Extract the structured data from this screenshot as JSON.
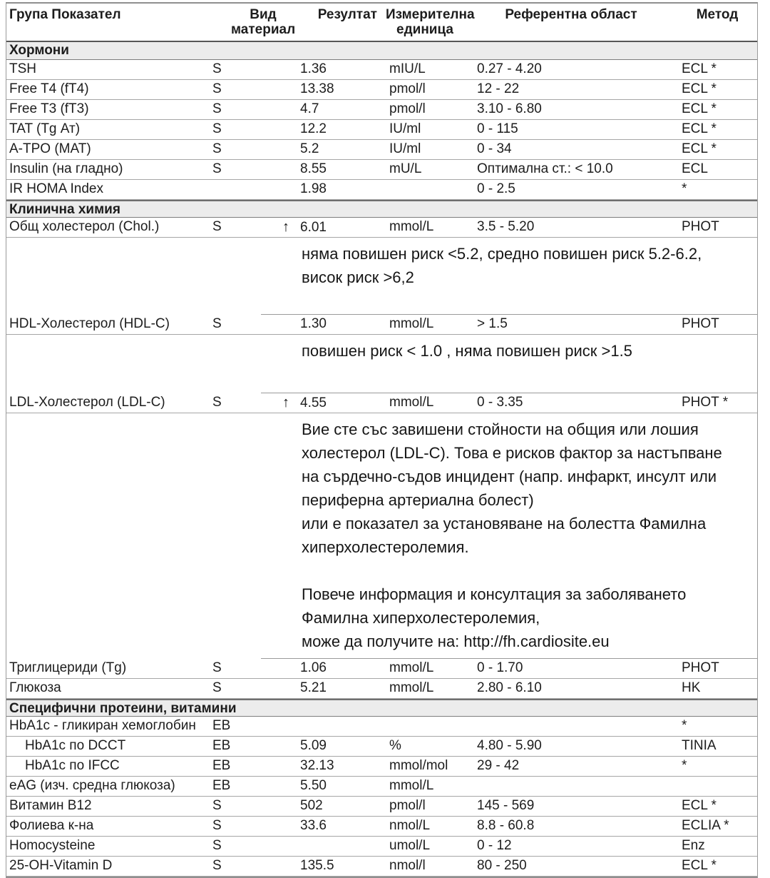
{
  "header": {
    "columns": [
      "Група Показател",
      "Вид материал",
      "Резултат",
      "Измерителна единица",
      "Референтна област",
      "Метод"
    ]
  },
  "icons": {
    "high_arrow": "↑"
  },
  "colors": {
    "section_bg": "#ececec",
    "border": "#9a9a9a",
    "text": "#1d1d1d"
  },
  "sections": [
    {
      "title": "Хормони",
      "rows": [
        {
          "name": "TSH",
          "material": "S",
          "flag": "",
          "result": "1.36",
          "unit": "mIU/L",
          "reference": "0.27 - 4.20",
          "method": "ECL *",
          "indent": false,
          "note": ""
        },
        {
          "name": "Free T4 (fT4)",
          "material": "S",
          "flag": "",
          "result": "13.38",
          "unit": "pmol/l",
          "reference": "12 - 22",
          "method": "ECL *",
          "indent": false,
          "note": ""
        },
        {
          "name": "Free T3 (fT3)",
          "material": "S",
          "flag": "",
          "result": "4.7",
          "unit": "pmol/l",
          "reference": "3.10 - 6.80",
          "method": "ECL *",
          "indent": false,
          "note": ""
        },
        {
          "name": "TAT (Tg Ат)",
          "material": "S",
          "flag": "",
          "result": "12.2",
          "unit": "IU/ml",
          "reference": "0 - 115",
          "method": "ECL *",
          "indent": false,
          "note": ""
        },
        {
          "name": "A-TPO (MAT)",
          "material": "S",
          "flag": "",
          "result": "5.2",
          "unit": "IU/ml",
          "reference": "0 - 34",
          "method": "ECL *",
          "indent": false,
          "note": ""
        },
        {
          "name": "Insulin (на гладно)",
          "material": "S",
          "flag": "",
          "result": "8.55",
          "unit": "mU/L",
          "reference": "Оптимална ст.: < 10.0",
          "method": "ECL",
          "indent": false,
          "note": ""
        },
        {
          "name": "IR HOMA Index",
          "material": "",
          "flag": "",
          "result": "1.98",
          "unit": "",
          "reference": "0 - 2.5",
          "method": "*",
          "indent": false,
          "note": ""
        }
      ]
    },
    {
      "title": "Клинична химия",
      "rows": [
        {
          "name": "Общ холестерол (Chol.)",
          "material": "S",
          "flag": "high",
          "result": "6.01",
          "unit": "mmol/L",
          "reference": "3.5 - 5.20",
          "method": "PHOT",
          "indent": false,
          "note": "няма повишен риск <5.2, средно повишен риск 5.2-6.2,\nвисок риск >6,2"
        },
        {
          "name": "HDL-Холестерол (HDL-C)",
          "material": "S",
          "flag": "",
          "result": "1.30",
          "unit": "mmol/L",
          "reference": "> 1.5",
          "method": "PHOT",
          "indent": false,
          "note": "повишен риск < 1.0 , няма повишен риск >1.5"
        },
        {
          "name": "LDL-Холестерол (LDL-C)",
          "material": "S",
          "flag": "high",
          "result": "4.55",
          "unit": "mmol/L",
          "reference": "0 - 3.35",
          "method": "PHOT *",
          "indent": false,
          "note": "Вие сте със завишени стойности на общия или лошия холестерол (LDL-C). Това е рисков фактор за настъпване на сърдечно-съдов инцидент (напр. инфаркт, инсулт или периферна артериална болест)\nили е показател за установяване на болестта Фамилна хиперхолестеролемия.\n\nПовече информация и консултация за заболяването Фамилна хиперхолестеролемия,\nможе да получите на: http://fh.cardiosite.eu"
        },
        {
          "name": "Триглицериди (Tg)",
          "material": "S",
          "flag": "",
          "result": "1.06",
          "unit": "mmol/L",
          "reference": "0 - 1.70",
          "method": "PHOT",
          "indent": false,
          "note": ""
        },
        {
          "name": "Глюкоза",
          "material": "S",
          "flag": "",
          "result": "5.21",
          "unit": "mmol/L",
          "reference": "2.80 - 6.10",
          "method": "HK",
          "indent": false,
          "note": ""
        }
      ]
    },
    {
      "title": "Специфични протеини, витамини",
      "rows": [
        {
          "name": "HbA1c - гликиран хемоглобин",
          "material": "EB",
          "flag": "",
          "result": "",
          "unit": "",
          "reference": "",
          "method": "*",
          "indent": false,
          "note": ""
        },
        {
          "name": "HbA1c по DCCT",
          "material": "EB",
          "flag": "",
          "result": "5.09",
          "unit": "%",
          "reference": "4.80 - 5.90",
          "method": "TINIA",
          "indent": true,
          "note": ""
        },
        {
          "name": "HbA1c по IFCC",
          "material": "EB",
          "flag": "",
          "result": "32.13",
          "unit": "mmol/mol",
          "reference": "29 - 42",
          "method": "*",
          "indent": true,
          "note": ""
        },
        {
          "name": "eAG (изч. средна глюкоза)",
          "material": "EB",
          "flag": "",
          "result": "5.50",
          "unit": "mmol/L",
          "reference": "",
          "method": "",
          "indent": false,
          "note": ""
        },
        {
          "name": "Витамин B12",
          "material": "S",
          "flag": "",
          "result": "502",
          "unit": "pmol/l",
          "reference": "145 - 569",
          "method": "ECL *",
          "indent": false,
          "note": ""
        },
        {
          "name": "Фолиева к-на",
          "material": "S",
          "flag": "",
          "result": "33.6",
          "unit": "nmol/L",
          "reference": "8.8 - 60.8",
          "method": "ECLIA *",
          "indent": false,
          "note": ""
        },
        {
          "name": "Homocysteine",
          "material": "S",
          "flag": "",
          "result": "",
          "unit": "umol/L",
          "reference": "0 - 12",
          "method": "Enz",
          "indent": false,
          "note": ""
        },
        {
          "name": "25-OH-Vitamin D",
          "material": "S",
          "flag": "",
          "result": "135.5",
          "unit": "nmol/l",
          "reference": "80 - 250",
          "method": "ECL *",
          "indent": false,
          "note": ""
        }
      ]
    }
  ]
}
